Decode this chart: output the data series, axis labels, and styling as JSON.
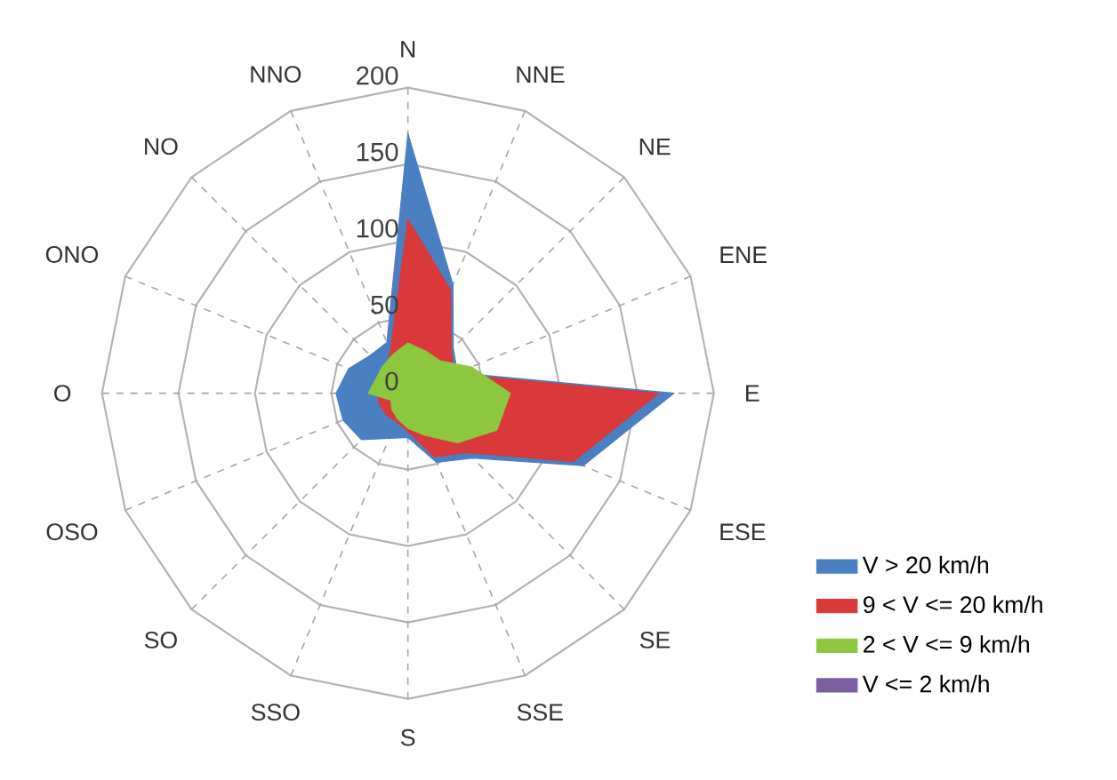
{
  "chart_data": {
    "type": "radar",
    "categories": [
      "N",
      "NNE",
      "NE",
      "ENE",
      "E",
      "ESE",
      "SE",
      "SSE",
      "S",
      "SSO",
      "SO",
      "OSO",
      "O",
      "ONO",
      "NO",
      "NNO"
    ],
    "ylim": [
      0,
      200
    ],
    "yticks": [
      0,
      50,
      100,
      150,
      200
    ],
    "grid": true,
    "legend": "bottom right",
    "series": [
      {
        "name": "V > 20 km/h",
        "color": "#4a7fc1",
        "values": [
          170,
          77,
          42,
          35,
          174,
          124,
          60,
          49,
          29,
          32,
          43,
          46,
          47,
          42,
          35,
          36
        ]
      },
      {
        "name": "9 < V <= 20 km/h",
        "color": "#d9393a",
        "values": [
          114,
          73,
          40,
          33,
          164,
          117,
          55,
          45,
          25,
          20,
          20,
          20,
          20,
          18,
          20,
          30
        ]
      },
      {
        "name": "2 < V <= 9 km/h",
        "color": "#8dc63f",
        "values": [
          33,
          30,
          30,
          45,
          67,
          63,
          46,
          30,
          23,
          18,
          15,
          12,
          26,
          23,
          24,
          27
        ]
      },
      {
        "name": "V <= 2 km/h",
        "color": "#7a5fa0",
        "values": [
          null,
          null,
          null,
          null,
          null,
          null,
          null,
          null,
          null,
          null,
          null,
          null,
          null,
          null,
          null,
          null
        ]
      }
    ]
  }
}
